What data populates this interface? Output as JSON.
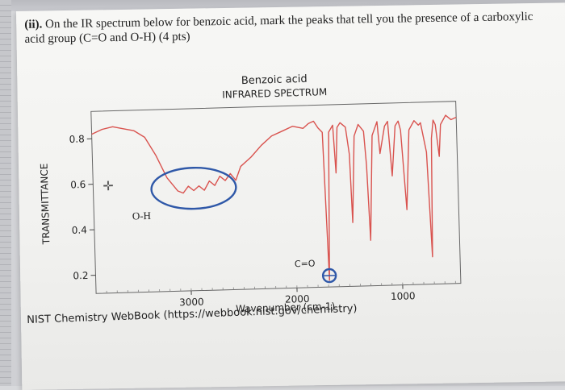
{
  "question": {
    "number": "(ii).",
    "text": "On the IR spectrum below for benzoic acid, mark the peaks that tell you the presence of a carboxylic acid group (C=O and O-H) (4 pts)"
  },
  "chart_data": {
    "type": "line",
    "title": "Benzoic acid",
    "subtitle": "INFRARED SPECTRUM",
    "xlabel": "Wavenumber (cm-1)",
    "ylabel": "TRANSMITTANCE",
    "x_ticks": [
      "3000",
      "2000",
      "1000"
    ],
    "y_ticks": [
      "0.8",
      "0.6",
      "0.4",
      "0.2"
    ],
    "xlim": [
      3900,
      450
    ],
    "ylim": [
      0.12,
      0.92
    ],
    "grid": false,
    "series": [
      {
        "color": "#d9534f",
        "x": [
          3900,
          3800,
          3700,
          3600,
          3500,
          3400,
          3300,
          3200,
          3100,
          3050,
          3000,
          2950,
          2900,
          2850,
          2800,
          2750,
          2700,
          2650,
          2600,
          2550,
          2500,
          2400,
          2300,
          2200,
          2100,
          2000,
          1900,
          1850,
          1800,
          1760,
          1720,
          1690,
          1660,
          1620,
          1600,
          1580,
          1550,
          1500,
          1470,
          1455,
          1420,
          1380,
          1330,
          1310,
          1290,
          1250,
          1200,
          1180,
          1130,
          1100,
          1070,
          1030,
          1000,
          980,
          940,
          900,
          850,
          810,
          790,
          740,
          710,
          690,
          670,
          650,
          620,
          600,
          550,
          500,
          450
        ],
        "y": [
          0.82,
          0.84,
          0.85,
          0.84,
          0.83,
          0.8,
          0.72,
          0.62,
          0.56,
          0.55,
          0.58,
          0.56,
          0.58,
          0.56,
          0.6,
          0.58,
          0.62,
          0.6,
          0.63,
          0.6,
          0.66,
          0.7,
          0.75,
          0.79,
          0.81,
          0.83,
          0.82,
          0.84,
          0.85,
          0.82,
          0.8,
          0.15,
          0.8,
          0.83,
          0.62,
          0.82,
          0.84,
          0.82,
          0.7,
          0.4,
          0.78,
          0.83,
          0.8,
          0.65,
          0.32,
          0.78,
          0.84,
          0.7,
          0.82,
          0.84,
          0.6,
          0.82,
          0.84,
          0.8,
          0.45,
          0.8,
          0.84,
          0.82,
          0.83,
          0.7,
          0.24,
          0.76,
          0.84,
          0.82,
          0.68,
          0.82,
          0.86,
          0.84,
          0.85
        ]
      }
    ],
    "annotations": {
      "oh_label": "O-H",
      "co_label": "C=O",
      "oh_circle_x": [
        3350,
        2550
      ],
      "oh_circle_y": [
        0.48,
        0.66
      ],
      "co_circle_x": 1690,
      "co_circle_y": 0.17,
      "annotation_color": "#2f58a8"
    }
  },
  "source": "NIST Chemistry WebBook (https://webbook.nist.gov/chemistry)"
}
